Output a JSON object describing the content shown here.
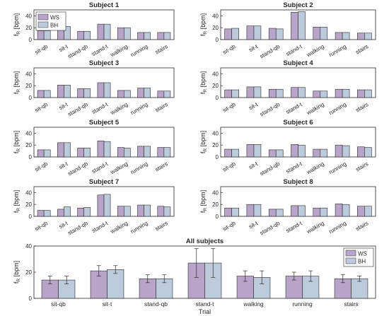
{
  "figure": {
    "ylabel": "f_R [bpm]",
    "legend_labels": [
      "WS",
      "BH"
    ]
  },
  "colors": {
    "ws": "#b9a4c9",
    "bh": "#bccbdc",
    "edge": "#2b2b2b",
    "axis": "#262626",
    "text": "#262626",
    "grid": "#f0f0f0"
  },
  "chart_data": [
    {
      "type": "bar",
      "title": "Subject 1",
      "categories": [
        "sit-qb",
        "sit-t",
        "stand-qb",
        "stand-t",
        "walking",
        "running",
        "stairs"
      ],
      "ylim": [
        0,
        50
      ],
      "yticks": [
        0,
        20,
        40
      ],
      "legend": "top-left",
      "series": [
        {
          "name": "WS",
          "values": [
            15,
            22,
            14,
            26,
            20,
            12,
            12
          ]
        },
        {
          "name": "BH",
          "values": [
            15,
            22,
            14,
            26,
            20,
            12,
            12
          ]
        }
      ]
    },
    {
      "type": "bar",
      "title": "Subject 2",
      "categories": [
        "sit-qb",
        "sit-t",
        "stand-qb",
        "stand-t",
        "walking",
        "running",
        "stairs"
      ],
      "ylim": [
        0,
        50
      ],
      "yticks": [
        0,
        20,
        40
      ],
      "series": [
        {
          "name": "WS",
          "values": [
            18,
            23,
            19,
            46,
            21,
            12,
            11
          ]
        },
        {
          "name": "BH",
          "values": [
            19,
            23,
            18,
            47,
            21,
            12,
            11
          ]
        }
      ]
    },
    {
      "type": "bar",
      "title": "Subject 3",
      "categories": [
        "sit-qb",
        "sit-t",
        "stand-qb",
        "stand-t",
        "walking",
        "running",
        "stairs"
      ],
      "ylim": [
        0,
        50
      ],
      "yticks": [
        0,
        20,
        40
      ],
      "series": [
        {
          "name": "WS",
          "values": [
            12,
            21,
            15,
            25,
            12,
            16,
            11
          ]
        },
        {
          "name": "BH",
          "values": [
            12,
            21,
            15,
            25,
            12,
            16,
            11
          ]
        }
      ]
    },
    {
      "type": "bar",
      "title": "Subject 4",
      "categories": [
        "sit-qb",
        "sit-t",
        "stand-qb",
        "stand-t",
        "walking",
        "running",
        "stairs"
      ],
      "ylim": [
        0,
        50
      ],
      "yticks": [
        0,
        20,
        40
      ],
      "series": [
        {
          "name": "WS",
          "values": [
            13,
            18,
            14,
            17,
            11,
            14,
            13
          ]
        },
        {
          "name": "BH",
          "values": [
            13,
            18,
            14,
            17,
            11,
            14,
            13
          ]
        }
      ]
    },
    {
      "type": "bar",
      "title": "Subject 5",
      "categories": [
        "sit-qb",
        "sit-t",
        "stand-qb",
        "stand-t",
        "walking",
        "running",
        "stairs"
      ],
      "ylim": [
        0,
        50
      ],
      "yticks": [
        0,
        20,
        40
      ],
      "series": [
        {
          "name": "WS",
          "values": [
            12,
            24,
            15,
            27,
            16,
            18,
            16
          ]
        },
        {
          "name": "BH",
          "values": [
            12,
            24,
            15,
            26,
            15,
            18,
            16
          ]
        }
      ]
    },
    {
      "type": "bar",
      "title": "Subject 6",
      "categories": [
        "sit-qb",
        "sit-t",
        "stand-qb",
        "stand-t",
        "walking",
        "running",
        "stairs"
      ],
      "ylim": [
        0,
        50
      ],
      "yticks": [
        0,
        20,
        40
      ],
      "series": [
        {
          "name": "WS",
          "values": [
            13,
            21,
            12,
            21,
            13,
            20,
            17
          ]
        },
        {
          "name": "BH",
          "values": [
            13,
            21,
            12,
            20,
            13,
            19,
            16
          ]
        }
      ]
    },
    {
      "type": "bar",
      "title": "Subject 7",
      "categories": [
        "sit-qb",
        "sit-t",
        "stand-qb",
        "stand-t",
        "walking",
        "running",
        "stairs"
      ],
      "ylim": [
        0,
        50
      ],
      "yticks": [
        0,
        20,
        40
      ],
      "series": [
        {
          "name": "WS",
          "values": [
            10,
            12,
            14,
            36,
            17,
            19,
            17
          ]
        },
        {
          "name": "BH",
          "values": [
            10,
            16,
            15,
            37,
            17,
            19,
            16
          ]
        }
      ]
    },
    {
      "type": "bar",
      "title": "Subject 8",
      "categories": [
        "sit-qb",
        "sit-t",
        "stand-qb",
        "stand-t",
        "walking",
        "running",
        "stairs"
      ],
      "ylim": [
        0,
        50
      ],
      "yticks": [
        0,
        20,
        40
      ],
      "series": [
        {
          "name": "WS",
          "values": [
            14,
            20,
            12,
            18,
            14,
            21,
            17
          ]
        },
        {
          "name": "BH",
          "values": [
            14,
            20,
            12,
            18,
            14,
            20,
            17
          ]
        }
      ]
    },
    {
      "type": "bar",
      "title": "All subjects",
      "xlabel": "Trial",
      "categories": [
        "sit-qb",
        "sit-t",
        "stand-qb",
        "stand-t",
        "walking",
        "running",
        "stairs"
      ],
      "ylim": [
        0,
        40
      ],
      "yticks": [
        0,
        20,
        40
      ],
      "legend": "top-right",
      "series": [
        {
          "name": "WS",
          "values": [
            14,
            21,
            15,
            27,
            17,
            17,
            15
          ],
          "errors": [
            3,
            4,
            3,
            11,
            4,
            3,
            3
          ]
        },
        {
          "name": "BH",
          "values": [
            14,
            22,
            15,
            27,
            16,
            17,
            15
          ],
          "errors": [
            3,
            3,
            3,
            11,
            5,
            4,
            2
          ]
        }
      ]
    }
  ]
}
